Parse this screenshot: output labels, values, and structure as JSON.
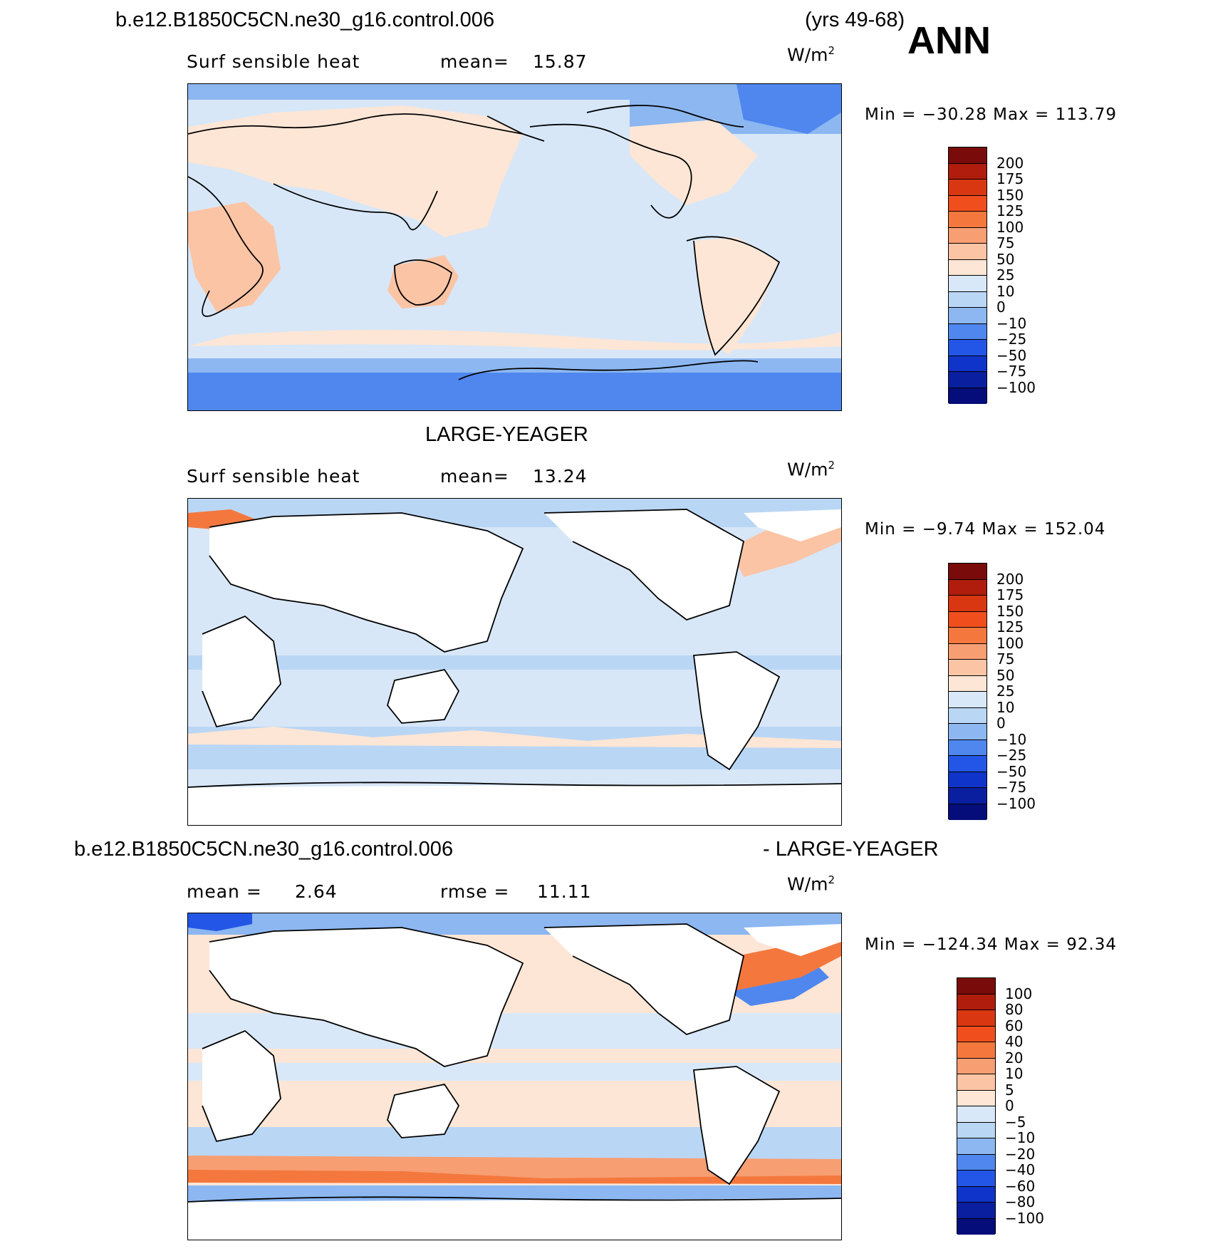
{
  "header": {
    "case_name": "b.e12.B1850C5CN.ne30_g16.control.006",
    "years": "(yrs 49-68)",
    "season": "ANN"
  },
  "panels": [
    {
      "id": "top",
      "variable": "Surf  sensible  heat",
      "mean_label": "mean=",
      "mean_value": "15.87",
      "units_base": "W/m",
      "units_exp": "2",
      "min_max": "Min  =  −30.28  Max  =  113.79",
      "levels": [
        "200",
        "175",
        "150",
        "125",
        "100",
        "75",
        "50",
        "25",
        "10",
        "0",
        "−10",
        "−25",
        "−50",
        "−75",
        "−100"
      ],
      "colors": [
        "#7a0b0b",
        "#b01d0c",
        "#d93612",
        "#f04f1d",
        "#f4783e",
        "#f79e72",
        "#fbc4a5",
        "#fde6d5",
        "#d8e8f8",
        "#bad6f5",
        "#8cb7f1",
        "#4f87ef",
        "#2356e6",
        "#0f34c9",
        "#0a1ea0",
        "#050d7a"
      ]
    },
    {
      "id": "middle",
      "title": "LARGE-YEAGER",
      "variable": "Surf  sensible  heat",
      "mean_label": "mean=",
      "mean_value": "13.24",
      "units_base": "W/m",
      "units_exp": "2",
      "min_max": "Min  =    −9.74  Max  =  152.04",
      "levels": [
        "200",
        "175",
        "150",
        "125",
        "100",
        "75",
        "50",
        "25",
        "10",
        "0",
        "−10",
        "−25",
        "−50",
        "−75",
        "−100"
      ],
      "colors": [
        "#7a0b0b",
        "#b01d0c",
        "#d93612",
        "#f04f1d",
        "#f4783e",
        "#f79e72",
        "#fbc4a5",
        "#fde6d5",
        "#d8e8f8",
        "#bad6f5",
        "#8cb7f1",
        "#4f87ef",
        "#2356e6",
        "#0f34c9",
        "#0a1ea0",
        "#050d7a"
      ]
    },
    {
      "id": "bottom",
      "title_left": "b.e12.B1850C5CN.ne30_g16.control.006",
      "title_right": "- LARGE-YEAGER",
      "mean_label": "mean  =",
      "mean_value": "2.64",
      "rmse_label": "rmse  =",
      "rmse_value": "11.11",
      "units_base": "W/m",
      "units_exp": "2",
      "min_max": "Min  =  −124.34  Max  =    92.34",
      "levels": [
        "100",
        "80",
        "60",
        "40",
        "20",
        "10",
        "5",
        "0",
        "−5",
        "−10",
        "−20",
        "−40",
        "−60",
        "−80",
        "−100"
      ],
      "colors": [
        "#7a0b0b",
        "#b01d0c",
        "#d93612",
        "#f04f1d",
        "#f4783e",
        "#f79e72",
        "#fbc4a5",
        "#fde6d5",
        "#d8e8f8",
        "#bad6f5",
        "#8cb7f1",
        "#4f87ef",
        "#2356e6",
        "#0f34c9",
        "#0a1ea0",
        "#050d7a"
      ]
    }
  ]
}
